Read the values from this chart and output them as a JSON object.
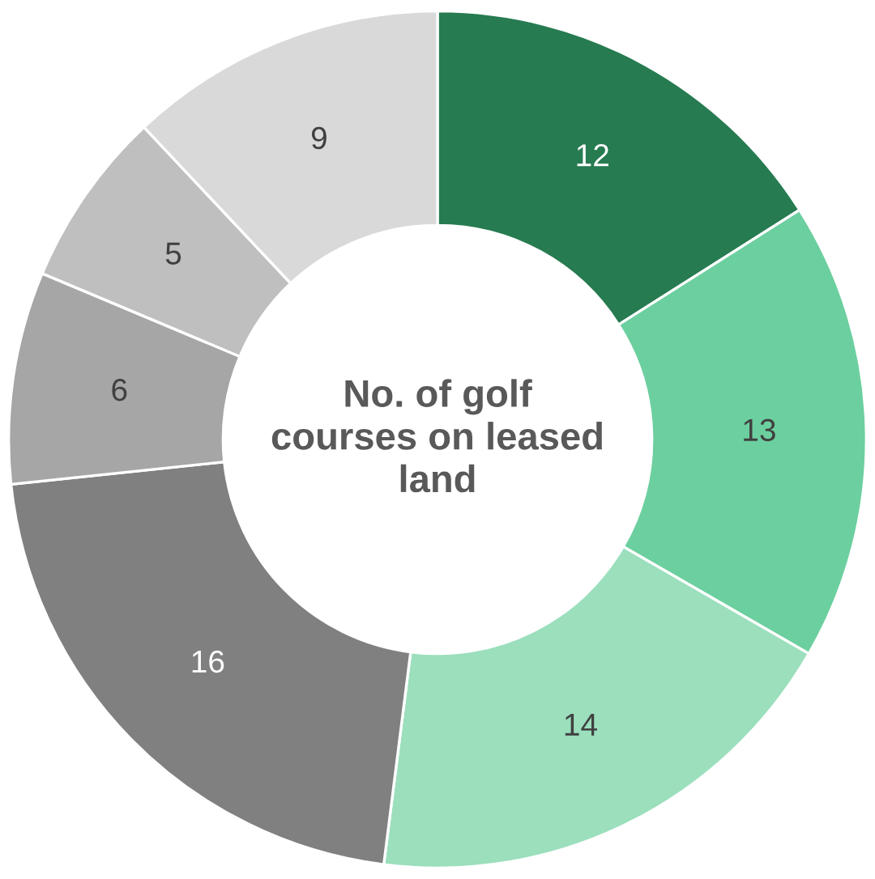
{
  "chart_data": {
    "type": "donut",
    "title": "No. of golf courses on leased land",
    "categories": [
      null,
      null,
      null,
      null,
      null,
      null,
      null
    ],
    "values": [
      12,
      13,
      14,
      16,
      6,
      5,
      9
    ],
    "colors": [
      "#267b50",
      "#6ccf9f",
      "#9bdfbd",
      "#808080",
      "#a6a6a6",
      "#bfbfbf",
      "#d9d9d9"
    ],
    "data_labels": true
  }
}
